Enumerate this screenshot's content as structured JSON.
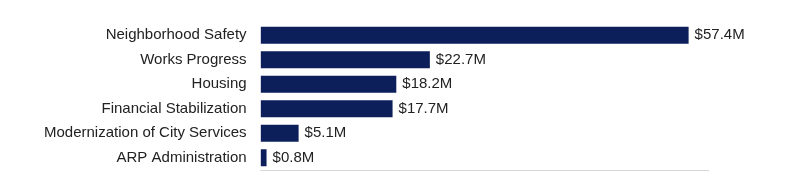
{
  "chart_data": {
    "type": "bar",
    "orientation": "horizontal",
    "categories": [
      "Neighborhood Safety",
      "Works Progress",
      "Housing",
      "Financial Stabilization",
      "Modernization of City Services",
      "ARP Administration"
    ],
    "values": [
      57.4,
      22.7,
      18.2,
      17.7,
      5.1,
      0.8
    ],
    "value_labels": [
      "$57.4M",
      "$22.7M",
      "$18.2M",
      "$17.7M",
      "$5.1M",
      "$0.8M"
    ],
    "color": "#0c1f5b",
    "xlim": [
      0,
      60
    ],
    "xticks": [],
    "grid": false,
    "data_labels": true,
    "tick_labels": "y"
  }
}
